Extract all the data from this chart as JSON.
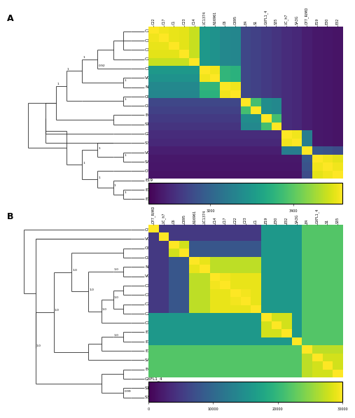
{
  "panel_A": {
    "labels": [
      "C22",
      "C17",
      "C1",
      "C23",
      "C14",
      "VC1374",
      "N16961",
      "C6",
      "O395",
      "E4",
      "S1",
      "GXFL1_4",
      "S35",
      "VC_h7",
      "SA3G",
      "O77_RIMD",
      "E19",
      "E30",
      "E32"
    ],
    "colormap": "viridis",
    "vmin": 3050,
    "vmax": 3520,
    "cbar_ticks": [
      3200,
      3400
    ],
    "matrix_values": [
      [
        3520,
        3510,
        3505,
        3500,
        3480,
        3300,
        3290,
        3270,
        3265,
        3150,
        3140,
        3130,
        3120,
        3110,
        3105,
        3090,
        3080,
        3078,
        3075
      ],
      [
        3510,
        3520,
        3505,
        3500,
        3480,
        3300,
        3290,
        3270,
        3265,
        3150,
        3140,
        3130,
        3120,
        3110,
        3105,
        3090,
        3080,
        3078,
        3075
      ],
      [
        3505,
        3505,
        3520,
        3500,
        3480,
        3300,
        3290,
        3270,
        3265,
        3150,
        3140,
        3130,
        3120,
        3110,
        3105,
        3090,
        3080,
        3078,
        3075
      ],
      [
        3500,
        3500,
        3500,
        3520,
        3480,
        3300,
        3290,
        3270,
        3265,
        3150,
        3140,
        3130,
        3120,
        3110,
        3105,
        3090,
        3080,
        3078,
        3075
      ],
      [
        3480,
        3480,
        3480,
        3480,
        3520,
        3300,
        3290,
        3270,
        3265,
        3150,
        3140,
        3130,
        3120,
        3110,
        3105,
        3090,
        3080,
        3078,
        3075
      ],
      [
        3300,
        3300,
        3300,
        3300,
        3300,
        3520,
        3510,
        3360,
        3350,
        3150,
        3140,
        3130,
        3120,
        3110,
        3105,
        3090,
        3080,
        3078,
        3075
      ],
      [
        3290,
        3290,
        3290,
        3290,
        3290,
        3510,
        3520,
        3360,
        3350,
        3150,
        3140,
        3130,
        3120,
        3110,
        3105,
        3090,
        3080,
        3078,
        3075
      ],
      [
        3270,
        3270,
        3270,
        3270,
        3270,
        3360,
        3360,
        3520,
        3510,
        3150,
        3140,
        3130,
        3120,
        3110,
        3105,
        3090,
        3080,
        3078,
        3075
      ],
      [
        3265,
        3265,
        3265,
        3265,
        3265,
        3350,
        3350,
        3510,
        3520,
        3150,
        3140,
        3130,
        3120,
        3110,
        3105,
        3090,
        3080,
        3078,
        3075
      ],
      [
        3150,
        3150,
        3150,
        3150,
        3150,
        3150,
        3150,
        3150,
        3150,
        3520,
        3380,
        3280,
        3270,
        3110,
        3105,
        3090,
        3080,
        3078,
        3075
      ],
      [
        3140,
        3140,
        3140,
        3140,
        3140,
        3140,
        3140,
        3140,
        3140,
        3380,
        3520,
        3280,
        3270,
        3110,
        3105,
        3090,
        3080,
        3078,
        3075
      ],
      [
        3130,
        3130,
        3130,
        3130,
        3130,
        3130,
        3130,
        3130,
        3130,
        3280,
        3280,
        3520,
        3380,
        3110,
        3105,
        3090,
        3080,
        3078,
        3075
      ],
      [
        3120,
        3120,
        3120,
        3120,
        3120,
        3120,
        3120,
        3120,
        3120,
        3270,
        3270,
        3380,
        3520,
        3110,
        3105,
        3090,
        3080,
        3078,
        3075
      ],
      [
        3110,
        3110,
        3110,
        3110,
        3110,
        3110,
        3110,
        3110,
        3110,
        3110,
        3110,
        3110,
        3110,
        3520,
        3510,
        3250,
        3080,
        3078,
        3075
      ],
      [
        3105,
        3105,
        3105,
        3105,
        3105,
        3105,
        3105,
        3105,
        3105,
        3105,
        3105,
        3105,
        3105,
        3510,
        3520,
        3250,
        3080,
        3078,
        3075
      ],
      [
        3090,
        3090,
        3090,
        3090,
        3090,
        3090,
        3090,
        3090,
        3090,
        3090,
        3090,
        3090,
        3090,
        3250,
        3250,
        3520,
        3180,
        3170,
        3160
      ],
      [
        3080,
        3080,
        3080,
        3080,
        3080,
        3080,
        3080,
        3080,
        3080,
        3080,
        3080,
        3080,
        3080,
        3080,
        3080,
        3180,
        3520,
        3510,
        3500
      ],
      [
        3078,
        3078,
        3078,
        3078,
        3078,
        3078,
        3078,
        3078,
        3078,
        3078,
        3078,
        3078,
        3078,
        3078,
        3078,
        3170,
        3510,
        3520,
        3510
      ],
      [
        3075,
        3075,
        3075,
        3075,
        3075,
        3075,
        3075,
        3075,
        3075,
        3075,
        3075,
        3075,
        3075,
        3075,
        3075,
        3160,
        3500,
        3510,
        3520
      ]
    ]
  },
  "panel_B": {
    "labels": [
      "O77_RIMD",
      "VC_h7",
      "C6",
      "O395",
      "N16961",
      "VC1374",
      "C14",
      "C17",
      "C22",
      "C23",
      "C1",
      "E19",
      "E30",
      "E32",
      "SA3G",
      "E4",
      "GXFL1_4",
      "S1",
      "S35"
    ],
    "colormap": "viridis",
    "vmin": 0,
    "vmax": 30000,
    "cbar_ticks": [
      0,
      10000,
      20000,
      30000
    ],
    "matrix_values": [
      [
        30000,
        5000,
        5000,
        5000,
        5000,
        5000,
        5000,
        5000,
        5000,
        5000,
        5000,
        16000,
        16000,
        16000,
        16000,
        22000,
        22000,
        22000,
        22000
      ],
      [
        5000,
        30000,
        5000,
        5000,
        5000,
        5000,
        5000,
        5000,
        5000,
        5000,
        5000,
        16000,
        16000,
        16000,
        16000,
        22000,
        22000,
        22000,
        22000
      ],
      [
        5000,
        5000,
        30000,
        28000,
        8000,
        8000,
        8000,
        8000,
        8000,
        8000,
        8000,
        16000,
        16000,
        16000,
        16000,
        22000,
        22000,
        22000,
        22000
      ],
      [
        5000,
        5000,
        28000,
        30000,
        8000,
        8000,
        8000,
        8000,
        8000,
        8000,
        8000,
        16000,
        16000,
        16000,
        16000,
        22000,
        22000,
        22000,
        22000
      ],
      [
        5000,
        5000,
        8000,
        8000,
        30000,
        29000,
        27000,
        27000,
        27000,
        27000,
        27000,
        16000,
        16000,
        16000,
        16000,
        22000,
        22000,
        22000,
        22000
      ],
      [
        5000,
        5000,
        8000,
        8000,
        29000,
        30000,
        27000,
        27000,
        27000,
        27000,
        27000,
        16000,
        16000,
        16000,
        16000,
        22000,
        22000,
        22000,
        22000
      ],
      [
        5000,
        5000,
        8000,
        8000,
        27000,
        27000,
        30000,
        29500,
        29000,
        29000,
        29000,
        16000,
        16000,
        16000,
        16000,
        22000,
        22000,
        22000,
        22000
      ],
      [
        5000,
        5000,
        8000,
        8000,
        27000,
        27000,
        29500,
        30000,
        29000,
        29000,
        29000,
        16000,
        16000,
        16000,
        16000,
        22000,
        22000,
        22000,
        22000
      ],
      [
        5000,
        5000,
        8000,
        8000,
        27000,
        27000,
        29000,
        29000,
        30000,
        29500,
        29000,
        16000,
        16000,
        16000,
        16000,
        22000,
        22000,
        22000,
        22000
      ],
      [
        5000,
        5000,
        8000,
        8000,
        27000,
        27000,
        29000,
        29000,
        29500,
        30000,
        29000,
        16000,
        16000,
        16000,
        16000,
        22000,
        22000,
        22000,
        22000
      ],
      [
        5000,
        5000,
        8000,
        8000,
        27000,
        27000,
        29000,
        29000,
        29000,
        29000,
        30000,
        16000,
        16000,
        16000,
        16000,
        22000,
        22000,
        22000,
        22000
      ],
      [
        16000,
        16000,
        16000,
        16000,
        16000,
        16000,
        16000,
        16000,
        16000,
        16000,
        16000,
        30000,
        28000,
        28000,
        16000,
        22000,
        22000,
        22000,
        22000
      ],
      [
        16000,
        16000,
        16000,
        16000,
        16000,
        16000,
        16000,
        16000,
        16000,
        16000,
        16000,
        28000,
        30000,
        28000,
        16000,
        22000,
        22000,
        22000,
        22000
      ],
      [
        16000,
        16000,
        16000,
        16000,
        16000,
        16000,
        16000,
        16000,
        16000,
        16000,
        16000,
        28000,
        28000,
        30000,
        16000,
        22000,
        22000,
        22000,
        22000
      ],
      [
        16000,
        16000,
        16000,
        16000,
        16000,
        16000,
        16000,
        16000,
        16000,
        16000,
        16000,
        16000,
        16000,
        16000,
        30000,
        22000,
        22000,
        22000,
        22000
      ],
      [
        22000,
        22000,
        22000,
        22000,
        22000,
        22000,
        22000,
        22000,
        22000,
        22000,
        22000,
        22000,
        22000,
        22000,
        22000,
        30000,
        27000,
        27000,
        27000
      ],
      [
        22000,
        22000,
        22000,
        22000,
        22000,
        22000,
        22000,
        22000,
        22000,
        22000,
        22000,
        22000,
        22000,
        22000,
        22000,
        27000,
        30000,
        28000,
        28000
      ],
      [
        22000,
        22000,
        22000,
        22000,
        22000,
        22000,
        22000,
        22000,
        22000,
        22000,
        22000,
        22000,
        22000,
        22000,
        22000,
        27000,
        28000,
        30000,
        28000
      ],
      [
        22000,
        22000,
        22000,
        22000,
        22000,
        22000,
        22000,
        22000,
        22000,
        22000,
        22000,
        22000,
        22000,
        22000,
        22000,
        27000,
        28000,
        28000,
        30000
      ]
    ]
  },
  "tree_color": "#2a2a2a",
  "tree_lw": 0.6,
  "label_fontsize": 4.2,
  "boot_fontsize": 3.2,
  "panel_label_fontsize": 9,
  "background_color": "#ffffff"
}
